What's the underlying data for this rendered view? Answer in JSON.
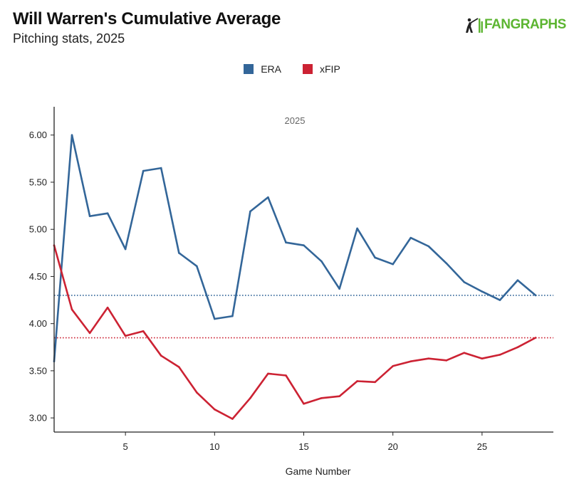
{
  "header": {
    "title": "Will Warren's Cumulative Average",
    "subtitle": "Pitching stats, 2025"
  },
  "logo": {
    "text": "FANGRAPHS",
    "color": "#5cb531",
    "icon": "batter-silhouette-icon"
  },
  "chart_data": {
    "type": "line",
    "title": "Will Warren's Cumulative Average",
    "subtitle": "Pitching stats, 2025",
    "xlabel": "Game Number",
    "ylabel": "",
    "annotation": "2025",
    "xlim": [
      1,
      29
    ],
    "ylim": [
      2.85,
      6.3
    ],
    "x_ticks": [
      5,
      10,
      15,
      20,
      25
    ],
    "y_ticks": [
      3.0,
      3.5,
      4.0,
      4.5,
      5.0,
      5.5,
      6.0
    ],
    "y_tick_labels": [
      "3.00",
      "3.50",
      "4.00",
      "4.50",
      "5.00",
      "5.50",
      "6.00"
    ],
    "grid": false,
    "legend_position": "top-center",
    "x": [
      1,
      2,
      3,
      4,
      5,
      6,
      7,
      8,
      9,
      10,
      11,
      12,
      13,
      14,
      15,
      16,
      17,
      18,
      19,
      20,
      21,
      22,
      23,
      24,
      25,
      26,
      27,
      28
    ],
    "series": [
      {
        "name": "ERA",
        "color": "#336699",
        "values": [
          3.6,
          6.0,
          5.14,
          5.17,
          4.79,
          5.62,
          5.65,
          4.75,
          4.61,
          4.05,
          4.08,
          5.19,
          5.34,
          4.86,
          4.83,
          4.66,
          4.37,
          5.01,
          4.7,
          4.63,
          4.91,
          4.82,
          4.64,
          4.44,
          4.34,
          4.25,
          4.46,
          4.3
        ],
        "reference": 4.3
      },
      {
        "name": "xFIP",
        "color": "#cc2233",
        "values": [
          4.83,
          4.15,
          3.9,
          4.17,
          3.87,
          3.92,
          3.66,
          3.54,
          3.27,
          3.09,
          2.99,
          3.21,
          3.47,
          3.45,
          3.15,
          3.21,
          3.23,
          3.39,
          3.38,
          3.55,
          3.6,
          3.63,
          3.61,
          3.69,
          3.63,
          3.67,
          3.75,
          3.85
        ],
        "reference": 3.85
      }
    ]
  }
}
